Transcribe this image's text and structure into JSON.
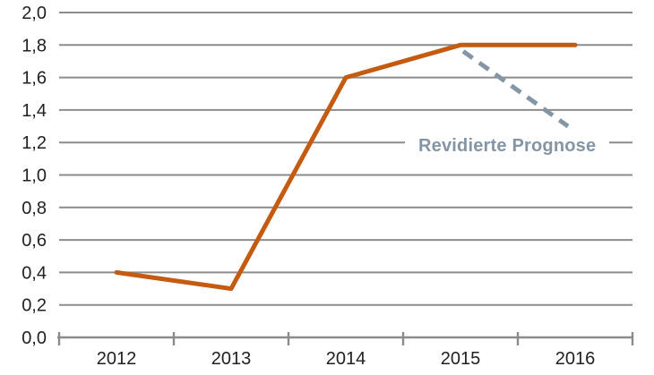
{
  "chart_data": {
    "type": "line",
    "categories": [
      "2012",
      "2013",
      "2014",
      "2015",
      "2016"
    ],
    "series": [
      {
        "name": "",
        "values": [
          0.4,
          0.3,
          1.6,
          1.8,
          1.8
        ],
        "color": "#C55A11",
        "style": "solid"
      },
      {
        "name": "Revidierte Prognose",
        "values": [
          null,
          null,
          null,
          1.8,
          1.3
        ],
        "color": "#8496A6",
        "style": "dashed"
      }
    ],
    "annotation": {
      "text": "Revidierte Prognose",
      "color": "#8496A6"
    },
    "title": "",
    "xlabel": "",
    "ylabel": "",
    "ylim": [
      0,
      2
    ],
    "ytick_step": 0.2,
    "ytick_labels": [
      "0,0",
      "0,2",
      "0,4",
      "0,6",
      "0,8",
      "1,0",
      "1,2",
      "1,4",
      "1,6",
      "1,8",
      "2,0"
    ],
    "decimal_separator": ",",
    "grid": true,
    "legend_position": "none",
    "colors": {
      "grid": "#8C8C8C",
      "axis": "#8C8C8C",
      "tick_text": "#212121"
    }
  }
}
